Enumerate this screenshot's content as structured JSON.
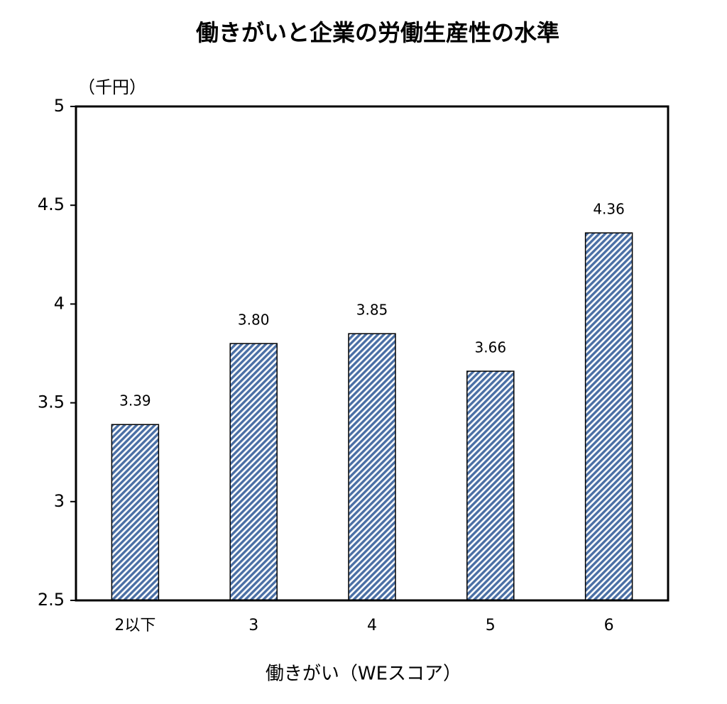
{
  "chart_data": {
    "type": "bar",
    "title": "働きがいと企業の労働生産性の水準",
    "y_unit_label": "（千円）",
    "x_axis_label": "働きがい（WEスコア）",
    "categories": [
      "2以下",
      "3",
      "4",
      "5",
      "6"
    ],
    "values": [
      3.39,
      3.8,
      3.85,
      3.66,
      4.36
    ],
    "value_labels": [
      "3.39",
      "3.80",
      "3.85",
      "3.66",
      "4.36"
    ],
    "color": "#4a6fa5",
    "ylim": [
      2.5,
      5
    ],
    "yticks": [
      2.5,
      3,
      3.5,
      4,
      4.5,
      5
    ],
    "grid": false
  }
}
